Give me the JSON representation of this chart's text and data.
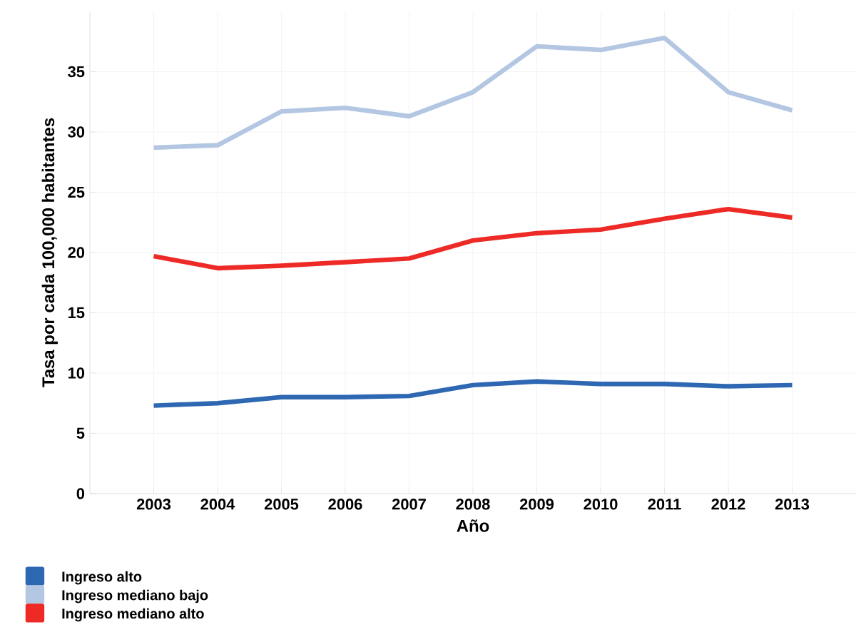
{
  "chart_data": {
    "type": "line",
    "xlabel": "Año",
    "ylabel": "Tasa por cada 100,000 habitantes",
    "x": [
      2003,
      2004,
      2005,
      2006,
      2007,
      2008,
      2009,
      2010,
      2011,
      2012,
      2013
    ],
    "series": [
      {
        "name": "Ingreso alto",
        "color": "#2e67b2",
        "values": [
          7.3,
          7.5,
          8.0,
          8.0,
          8.1,
          9.0,
          9.3,
          9.1,
          9.1,
          8.9,
          9.0
        ]
      },
      {
        "name": "Ingreso mediano bajo",
        "color": "#b3c6e2",
        "values": [
          28.7,
          28.9,
          31.7,
          32.0,
          31.3,
          33.3,
          37.1,
          36.8,
          37.8,
          33.3,
          31.8
        ]
      },
      {
        "name": "Ingreso mediano alto",
        "color": "#ee2a27",
        "values": [
          19.7,
          18.7,
          18.9,
          19.2,
          19.5,
          21.0,
          21.6,
          21.9,
          22.8,
          23.6,
          22.9
        ]
      }
    ],
    "xlim": [
      2002,
      2014
    ],
    "ylim": [
      0,
      40
    ],
    "xticks": [
      2003,
      2004,
      2005,
      2006,
      2007,
      2008,
      2009,
      2010,
      2011,
      2012,
      2013
    ],
    "yticks": [
      0,
      5,
      10,
      15,
      20,
      25,
      30,
      35
    ],
    "grid": true,
    "legend": "bottom left",
    "marker": "none",
    "line_style": "solid"
  }
}
